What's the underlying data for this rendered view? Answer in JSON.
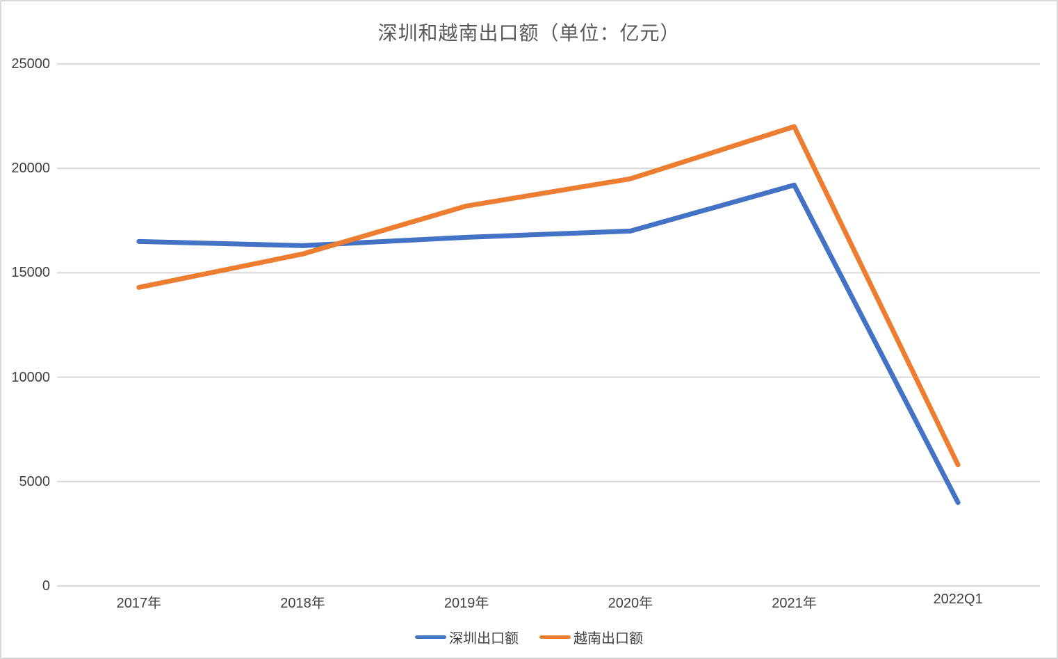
{
  "chart_data": {
    "type": "line",
    "title": "深圳和越南出口额（单位：亿元）",
    "categories": [
      "2017年",
      "2018年",
      "2019年",
      "2020年",
      "2021年",
      "2022Q1"
    ],
    "series": [
      {
        "name": "深圳出口额",
        "color": "#4472C4",
        "values": [
          16500,
          16300,
          16700,
          17000,
          19200,
          4000
        ]
      },
      {
        "name": "越南出口额",
        "color": "#ED7D31",
        "values": [
          14300,
          15900,
          18200,
          19500,
          22000,
          5800
        ]
      }
    ],
    "ylim": [
      0,
      25000
    ],
    "ytick_interval": 5000,
    "yticks_display": [
      "25000",
      "20000",
      "15000",
      "10000",
      "5000",
      "0"
    ],
    "xlabel": "",
    "ylabel": "",
    "grid": "horizontal-only",
    "legend_position": "bottom-center",
    "colors": {
      "gridline": "#D9D9D9",
      "axis_text": "#3F3F3F",
      "title_text": "#595959",
      "background": "#FFFFFF",
      "frame_border": "#D9D9D9"
    }
  }
}
